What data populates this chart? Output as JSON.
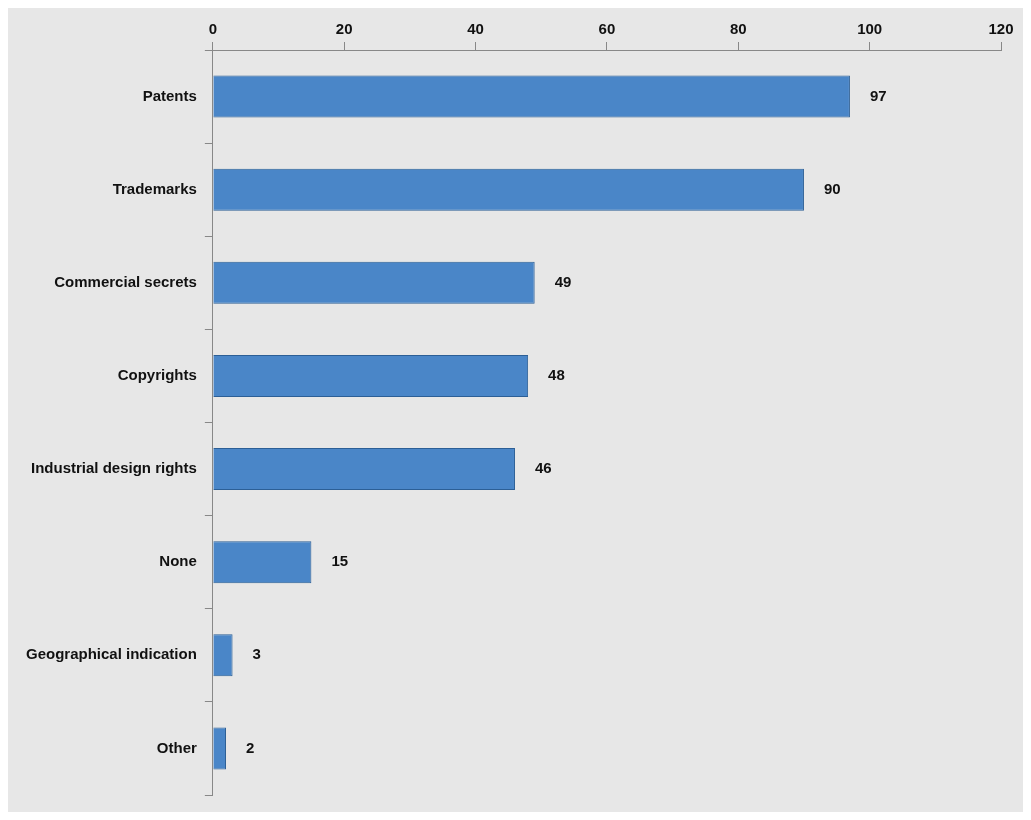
{
  "chart_data": {
    "type": "bar",
    "orientation": "horizontal",
    "categories": [
      "Patents",
      "Trademarks",
      "Commercial secrets",
      "Copyrights",
      "Industrial design rights",
      "None",
      "Geographical indication",
      "Other"
    ],
    "values": [
      97,
      90,
      49,
      48,
      46,
      15,
      3,
      2
    ],
    "color": "#4a86c8",
    "xlim": [
      0,
      120
    ],
    "xticks": [
      0,
      20,
      40,
      60,
      80,
      100,
      120
    ],
    "grid": false,
    "legend": false,
    "data_labels": true
  }
}
